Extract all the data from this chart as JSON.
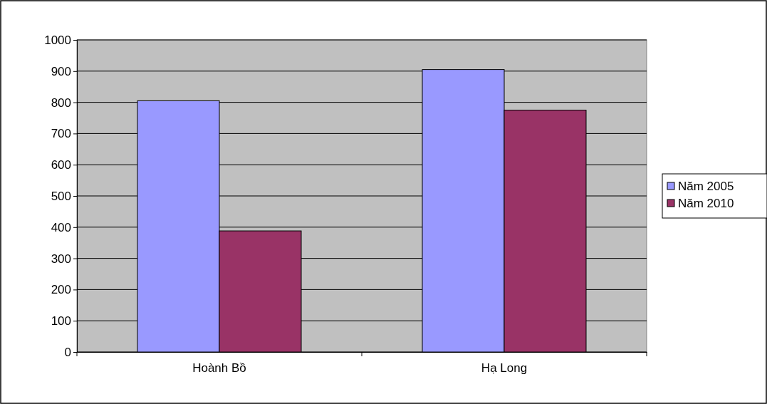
{
  "chart_data": {
    "type": "bar",
    "categories": [
      "Hoành Bồ",
      "Hạ Long"
    ],
    "series": [
      {
        "name": "Năm 2005",
        "color": "#9999ff",
        "values": [
          805,
          905
        ]
      },
      {
        "name": "Năm 2010",
        "color": "#993366",
        "values": [
          388,
          775
        ]
      }
    ],
    "ylim": [
      0,
      1000
    ],
    "yticks": [
      0,
      100,
      200,
      300,
      400,
      500,
      600,
      700,
      800,
      900,
      1000
    ],
    "grid": "y",
    "legend": "right"
  }
}
